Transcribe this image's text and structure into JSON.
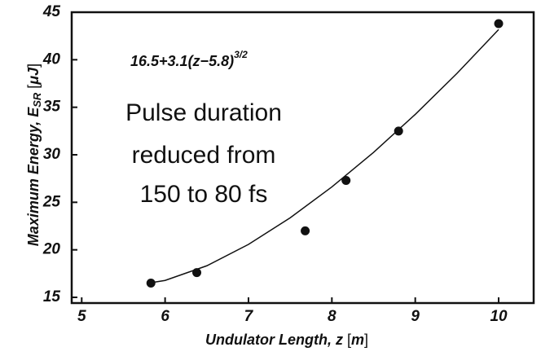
{
  "chart_data": {
    "type": "scatter",
    "xlabel_parts": [
      "Undulator Length, ",
      "z",
      " [",
      "m",
      "]"
    ],
    "ylabel_parts": [
      "Maximum Energy, ",
      "E",
      "SR",
      " [",
      "μJ",
      "]"
    ],
    "formula": "16.5+3.1(z−5.8)",
    "formula_sup": "3/2",
    "annotation_lines": [
      "Pulse duration",
      "reduced from",
      "150 to 80 fs"
    ],
    "xlim": [
      4.88,
      10.42
    ],
    "ylim": [
      14.4,
      45
    ],
    "xticks": [
      5,
      6,
      7,
      8,
      9,
      10
    ],
    "yticks": [
      15,
      20,
      25,
      30,
      35,
      40,
      45
    ],
    "points": {
      "color": "#111111",
      "x": [
        5.83,
        6.38,
        7.68,
        8.17,
        8.8,
        10.0
      ],
      "values": [
        16.5,
        17.6,
        22.0,
        27.3,
        32.5,
        43.8
      ]
    },
    "fit": {
      "color": "#111111",
      "x": [
        5.8,
        6.0,
        6.5,
        7.0,
        7.5,
        8.0,
        8.5,
        9.0,
        9.5,
        10.0
      ],
      "values": [
        16.5,
        16.78,
        18.32,
        20.57,
        23.37,
        26.62,
        30.25,
        34.25,
        38.56,
        43.18
      ]
    }
  }
}
